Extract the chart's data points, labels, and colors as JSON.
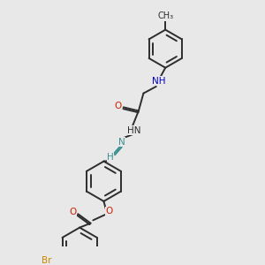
{
  "background_color": "#e8e8e8",
  "bond_color": "#2d2d2d",
  "N_color": "#0000cc",
  "O_color": "#cc2200",
  "Br_color": "#cc8800",
  "teal_color": "#3a9090",
  "figsize": [
    3.0,
    3.0
  ],
  "dpi": 100,
  "xlim": [
    0,
    10
  ],
  "ylim": [
    0,
    10
  ]
}
